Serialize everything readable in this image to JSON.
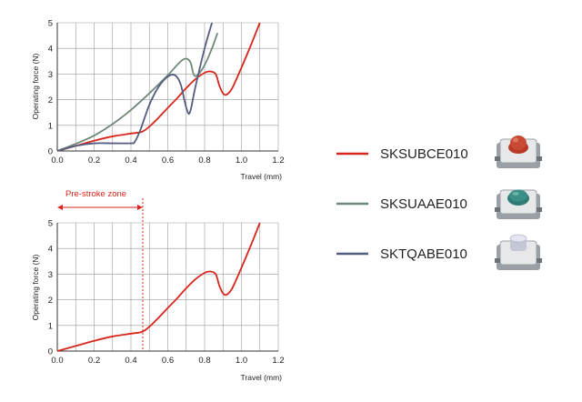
{
  "chart_data": [
    {
      "type": "line",
      "xlabel": "Travel (mm)",
      "ylabel": "Operating force (N)",
      "xlim": [
        0,
        1.2
      ],
      "ylim": [
        0,
        5
      ],
      "x_ticks": [
        "0.0",
        "0.2",
        "0.4",
        "0.6",
        "0.8",
        "1.0",
        "1.2"
      ],
      "y_ticks": [
        "0",
        "1",
        "2",
        "3",
        "4",
        "5"
      ],
      "grid": true,
      "series": [
        {
          "name": "SKSUBCE010",
          "color": "#d9261c",
          "x": [
            0,
            0.1,
            0.2,
            0.3,
            0.4,
            0.46,
            0.5,
            0.55,
            0.6,
            0.65,
            0.7,
            0.75,
            0.8,
            0.83,
            0.86,
            0.88,
            0.9,
            0.92,
            0.95,
            1.0,
            1.05,
            1.1
          ],
          "y": [
            0,
            0.2,
            0.4,
            0.57,
            0.68,
            0.75,
            0.95,
            1.3,
            1.68,
            2.05,
            2.45,
            2.8,
            3.05,
            3.1,
            3.0,
            2.55,
            2.25,
            2.2,
            2.45,
            3.25,
            4.1,
            5.0
          ]
        },
        {
          "name": "SKSUAAE010",
          "color": "#6f8a78",
          "x": [
            0,
            0.1,
            0.2,
            0.3,
            0.4,
            0.5,
            0.6,
            0.68,
            0.72,
            0.74,
            0.76,
            0.8,
            0.84,
            0.87
          ],
          "y": [
            0,
            0.28,
            0.6,
            1.05,
            1.6,
            2.25,
            2.95,
            3.55,
            3.5,
            3.0,
            2.95,
            3.35,
            4.0,
            4.6
          ]
        },
        {
          "name": "SKTQABE010",
          "color": "#535d80",
          "x": [
            0,
            0.1,
            0.2,
            0.3,
            0.4,
            0.42,
            0.45,
            0.5,
            0.55,
            0.6,
            0.64,
            0.67,
            0.7,
            0.72,
            0.75,
            0.8,
            0.84
          ],
          "y": [
            0,
            0.2,
            0.3,
            0.3,
            0.3,
            0.35,
            0.8,
            1.8,
            2.5,
            2.9,
            2.95,
            2.6,
            1.7,
            1.5,
            2.5,
            4.0,
            5.0
          ]
        }
      ]
    },
    {
      "type": "line",
      "xlabel": "Travel (mm)",
      "ylabel": "Operating force (N)",
      "xlim": [
        0,
        1.2
      ],
      "ylim": [
        0,
        5
      ],
      "x_ticks": [
        "0.0",
        "0.2",
        "0.4",
        "0.6",
        "0.8",
        "1.0",
        "1.2"
      ],
      "y_ticks": [
        "0",
        "1",
        "2",
        "3",
        "4",
        "5"
      ],
      "grid": true,
      "annotation": {
        "text": "Pre-stroke zone",
        "x_start": 0,
        "x_end": 0.46,
        "color": "#d9261c"
      },
      "series": [
        {
          "name": "SKSUBCE010",
          "color": "#d9261c",
          "x": [
            0,
            0.1,
            0.2,
            0.3,
            0.4,
            0.46,
            0.5,
            0.55,
            0.6,
            0.65,
            0.7,
            0.75,
            0.8,
            0.83,
            0.86,
            0.88,
            0.9,
            0.92,
            0.95,
            1.0,
            1.05,
            1.1
          ],
          "y": [
            0,
            0.2,
            0.4,
            0.57,
            0.68,
            0.75,
            0.95,
            1.3,
            1.68,
            2.05,
            2.45,
            2.8,
            3.05,
            3.1,
            3.0,
            2.55,
            2.25,
            2.2,
            2.45,
            3.25,
            4.1,
            5.0
          ]
        }
      ]
    }
  ],
  "legend": [
    {
      "label": "SKSUBCE010",
      "color": "#d9261c",
      "icon": "switch-red-icon",
      "cap_color": "#c84a34"
    },
    {
      "label": "SKSUAAE010",
      "color": "#6f8a78",
      "icon": "switch-teal-icon",
      "cap_color": "#3a8f86"
    },
    {
      "label": "SKTQABE010",
      "color": "#535d80",
      "icon": "switch-white-icon",
      "cap_color": "#d9dbe8"
    }
  ]
}
